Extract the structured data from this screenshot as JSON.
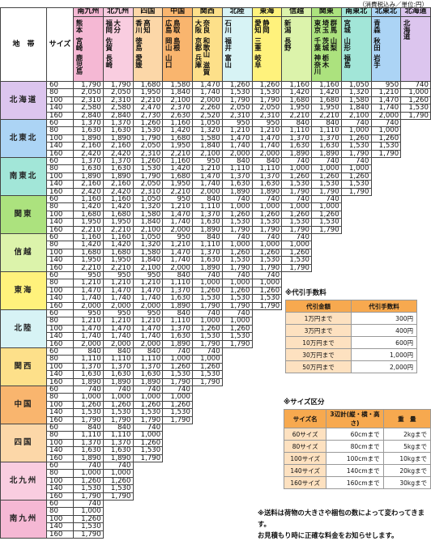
{
  "note": "（消費税込み／単位:円）",
  "header": {
    "zone": "地　帯",
    "size": "サイズ"
  },
  "destinations": [
    {
      "name": "南九州",
      "color": "#f5b8d4",
      "prefectures": [
        "熊本",
        "宮崎",
        "鹿児島"
      ]
    },
    {
      "name": "北九州",
      "color": "#f9cde0",
      "prefectures": [
        "福岡",
        "佐賀",
        "長崎",
        "大分"
      ]
    },
    {
      "name": "四国",
      "color": "#fcd7a8",
      "prefectures": [
        "香川",
        "徳島",
        "愛媛",
        "高知"
      ]
    },
    {
      "name": "中国",
      "color": "#f9b56e",
      "prefectures": [
        "広島",
        "岡山",
        "山口",
        "鳥取",
        "島根"
      ]
    },
    {
      "name": "関西",
      "color": "#fde08a",
      "prefectures": [
        "大阪",
        "京都",
        "兵庫",
        "奈良",
        "和歌山",
        "滋賀"
      ]
    },
    {
      "name": "北陸",
      "color": "#d7f3f5",
      "prefectures": [
        "石川",
        "福井",
        "富山"
      ]
    },
    {
      "name": "東海",
      "color": "#fff27c",
      "prefectures": [
        "愛知",
        "三重",
        "岐阜",
        "静岡"
      ]
    },
    {
      "name": "信越",
      "color": "#dcf3ab",
      "prefectures": [
        "新潟",
        "長野"
      ]
    },
    {
      "name": "関東",
      "color": "#ace27e",
      "prefectures": [
        "東京",
        "千葉",
        "神奈川",
        "埼玉",
        "茨城",
        "栃木",
        "群馬",
        "山梨"
      ]
    },
    {
      "name": "南東北",
      "color": "#a2e6d8",
      "prefectures": [
        "宮城",
        "山形",
        "福島"
      ]
    },
    {
      "name": "北東北",
      "color": "#acd4f5",
      "prefectures": [
        "青森",
        "秋田",
        "岩手"
      ]
    },
    {
      "name": "北海道",
      "color": "#dcc5ee",
      "prefectures": [
        "北海道"
      ]
    }
  ],
  "origins": [
    {
      "name": "北海道",
      "color": "#dcc5ee",
      "rows": [
        {
          "size": "60",
          "prices": [
            "1,790",
            "1,790",
            "1,680",
            "1,580",
            "1,470",
            "1,260",
            "1,260",
            "1,160",
            "1,160",
            "1,050",
            "950",
            "740"
          ]
        },
        {
          "size": "80",
          "prices": [
            "2,050",
            "2,050",
            "1,950",
            "1,840",
            "1,740",
            "1,530",
            "1,530",
            "1,420",
            "1,420",
            "1,320",
            "1,210",
            "1,000"
          ]
        },
        {
          "size": "100",
          "prices": [
            "2,310",
            "2,310",
            "2,210",
            "2,100",
            "2,000",
            "1,790",
            "1,790",
            "1,680",
            "1,680",
            "1,580",
            "1,470",
            "1,260"
          ]
        },
        {
          "size": "140",
          "prices": [
            "2,580",
            "2,580",
            "2,470",
            "2,370",
            "2,260",
            "2,050",
            "2,050",
            "1,950",
            "1,950",
            "1,840",
            "1,740",
            "1,530"
          ]
        },
        {
          "size": "160",
          "prices": [
            "2,840",
            "2,840",
            "2,730",
            "2,630",
            "2,520",
            "2,310",
            "2,310",
            "2,210",
            "2,210",
            "2,100",
            "2,000",
            "1,790"
          ]
        }
      ]
    },
    {
      "name": "北東北",
      "color": "#acd4f5",
      "rows": [
        {
          "size": "60",
          "prices": [
            "1,370",
            "1,370",
            "1,260",
            "1,160",
            "1,050",
            "950",
            "950",
            "840",
            "840",
            "740",
            "740"
          ]
        },
        {
          "size": "80",
          "prices": [
            "1,630",
            "1,630",
            "1,530",
            "1,420",
            "1,320",
            "1,210",
            "1,210",
            "1,110",
            "1,110",
            "1,000",
            "1,000"
          ]
        },
        {
          "size": "100",
          "prices": [
            "1,890",
            "1,890",
            "1,790",
            "1,680",
            "1,580",
            "1,470",
            "1,470",
            "1,370",
            "1,370",
            "1,260",
            "1,260"
          ]
        },
        {
          "size": "140",
          "prices": [
            "2,160",
            "2,160",
            "2,050",
            "1,950",
            "1,840",
            "1,740",
            "1,740",
            "1,630",
            "1,630",
            "1,530",
            "1,530"
          ]
        },
        {
          "size": "160",
          "prices": [
            "2,420",
            "2,420",
            "2,310",
            "2,210",
            "2,100",
            "2,000",
            "2,000",
            "1,890",
            "1,890",
            "1,790",
            "1,790"
          ]
        }
      ]
    },
    {
      "name": "南東北",
      "color": "#a2e6d8",
      "rows": [
        {
          "size": "60",
          "prices": [
            "1,370",
            "1,370",
            "1,260",
            "1,160",
            "950",
            "840",
            "840",
            "740",
            "740",
            "740"
          ]
        },
        {
          "size": "80",
          "prices": [
            "1,630",
            "1,630",
            "1,530",
            "1,420",
            "1,210",
            "1,110",
            "1,110",
            "1,000",
            "1,000",
            "1,000"
          ]
        },
        {
          "size": "100",
          "prices": [
            "1,890",
            "1,890",
            "1,790",
            "1,680",
            "1,470",
            "1,370",
            "1,370",
            "1,260",
            "1,260",
            "1,260"
          ]
        },
        {
          "size": "140",
          "prices": [
            "2,160",
            "2,160",
            "2,050",
            "1,950",
            "1,740",
            "1,630",
            "1,630",
            "1,530",
            "1,530",
            "1,530"
          ]
        },
        {
          "size": "160",
          "prices": [
            "2,420",
            "2,420",
            "2,310",
            "2,210",
            "2,000",
            "1,890",
            "1,890",
            "1,790",
            "1,790",
            "1,790"
          ]
        }
      ]
    },
    {
      "name": "関東",
      "color": "#ace27e",
      "rows": [
        {
          "size": "60",
          "prices": [
            "1,160",
            "1,160",
            "1,050",
            "950",
            "840",
            "740",
            "740",
            "740",
            "740"
          ]
        },
        {
          "size": "80",
          "prices": [
            "1,420",
            "1,420",
            "1,320",
            "1,210",
            "1,110",
            "1,000",
            "1,000",
            "1,000",
            "1,000"
          ]
        },
        {
          "size": "100",
          "prices": [
            "1,680",
            "1,680",
            "1,580",
            "1,470",
            "1,370",
            "1,260",
            "1,260",
            "1,260",
            "1,260"
          ]
        },
        {
          "size": "140",
          "prices": [
            "1,950",
            "1,950",
            "1,840",
            "1,740",
            "1,630",
            "1,530",
            "1,530",
            "1,530",
            "1,530"
          ]
        },
        {
          "size": "160",
          "prices": [
            "2,210",
            "2,210",
            "2,100",
            "2,000",
            "1,890",
            "1,790",
            "1,790",
            "1,790",
            "1,790"
          ]
        }
      ]
    },
    {
      "name": "信越",
      "color": "#dcf3ab",
      "rows": [
        {
          "size": "60",
          "prices": [
            "1,160",
            "1,160",
            "1,050",
            "950",
            "840",
            "740",
            "740",
            "740"
          ]
        },
        {
          "size": "80",
          "prices": [
            "1,420",
            "1,420",
            "1,320",
            "1,210",
            "1,110",
            "1,000",
            "1,000",
            "1,000"
          ]
        },
        {
          "size": "100",
          "prices": [
            "1,680",
            "1,680",
            "1,580",
            "1,470",
            "1,370",
            "1,260",
            "1,260",
            "1,260"
          ]
        },
        {
          "size": "140",
          "prices": [
            "1,950",
            "1,950",
            "1,840",
            "1,740",
            "1,630",
            "1,530",
            "1,530",
            "1,530"
          ]
        },
        {
          "size": "160",
          "prices": [
            "2,210",
            "2,210",
            "2,100",
            "2,000",
            "1,890",
            "1,790",
            "1,790",
            "1,790"
          ]
        }
      ]
    },
    {
      "name": "東海",
      "color": "#fff27c",
      "rows": [
        {
          "size": "60",
          "prices": [
            "950",
            "950",
            "950",
            "840",
            "740",
            "740",
            "740"
          ]
        },
        {
          "size": "80",
          "prices": [
            "1,210",
            "1,210",
            "1,210",
            "1,110",
            "1,000",
            "1,000",
            "1,000"
          ]
        },
        {
          "size": "100",
          "prices": [
            "1,470",
            "1,470",
            "1,470",
            "1,370",
            "1,260",
            "1,260",
            "1,260"
          ]
        },
        {
          "size": "140",
          "prices": [
            "1,740",
            "1,740",
            "1,740",
            "1,630",
            "1,530",
            "1,530",
            "1,530"
          ]
        },
        {
          "size": "160",
          "prices": [
            "2,000",
            "2,000",
            "2,000",
            "1,890",
            "1,790",
            "1,790",
            "1,790"
          ]
        }
      ]
    },
    {
      "name": "北陸",
      "color": "#d7f3f5",
      "rows": [
        {
          "size": "60",
          "prices": [
            "950",
            "950",
            "950",
            "840",
            "740",
            "740"
          ]
        },
        {
          "size": "80",
          "prices": [
            "1,210",
            "1,210",
            "1,210",
            "1,110",
            "1,000",
            "1,000"
          ]
        },
        {
          "size": "100",
          "prices": [
            "1,470",
            "1,470",
            "1,470",
            "1,370",
            "1,260",
            "1,260"
          ]
        },
        {
          "size": "140",
          "prices": [
            "1,740",
            "1,740",
            "1,740",
            "1,630",
            "1,530",
            "1,530"
          ]
        },
        {
          "size": "160",
          "prices": [
            "2,000",
            "2,000",
            "2,000",
            "1,890",
            "1,790",
            "1,790"
          ]
        }
      ]
    },
    {
      "name": "関西",
      "color": "#fde08a",
      "rows": [
        {
          "size": "60",
          "prices": [
            "840",
            "840",
            "840",
            "740",
            "740"
          ]
        },
        {
          "size": "80",
          "prices": [
            "1,110",
            "1,110",
            "1,110",
            "1,000",
            "1,000"
          ]
        },
        {
          "size": "100",
          "prices": [
            "1,370",
            "1,370",
            "1,370",
            "1,260",
            "1,260"
          ]
        },
        {
          "size": "140",
          "prices": [
            "1,630",
            "1,630",
            "1,630",
            "1,530",
            "1,530"
          ]
        },
        {
          "size": "160",
          "prices": [
            "1,890",
            "1,890",
            "1,890",
            "1,790",
            "1,790"
          ]
        }
      ]
    },
    {
      "name": "中国",
      "color": "#f9b56e",
      "rows": [
        {
          "size": "60",
          "prices": [
            "740",
            "740",
            "740",
            "740"
          ]
        },
        {
          "size": "80",
          "prices": [
            "1,000",
            "1,000",
            "1,000",
            "1,000"
          ]
        },
        {
          "size": "100",
          "prices": [
            "1,260",
            "1,260",
            "1,260",
            "1,260"
          ]
        },
        {
          "size": "140",
          "prices": [
            "1,530",
            "1,530",
            "1,530",
            "1,530"
          ]
        },
        {
          "size": "160",
          "prices": [
            "1,790",
            "1,790",
            "1,790",
            "1,790"
          ]
        }
      ]
    },
    {
      "name": "四国",
      "color": "#fcd7a8",
      "rows": [
        {
          "size": "60",
          "prices": [
            "840",
            "840",
            "740"
          ]
        },
        {
          "size": "80",
          "prices": [
            "1,110",
            "1,110",
            "1,000"
          ]
        },
        {
          "size": "100",
          "prices": [
            "1,370",
            "1,370",
            "1,260"
          ]
        },
        {
          "size": "140",
          "prices": [
            "1,630",
            "1,630",
            "1,530"
          ]
        },
        {
          "size": "160",
          "prices": [
            "1,890",
            "1,890",
            "1,790"
          ]
        }
      ]
    },
    {
      "name": "北九州",
      "color": "#f9cde0",
      "rows": [
        {
          "size": "60",
          "prices": [
            "740",
            "740"
          ]
        },
        {
          "size": "80",
          "prices": [
            "1,000",
            "1,000"
          ]
        },
        {
          "size": "100",
          "prices": [
            "1,260",
            "1,260"
          ]
        },
        {
          "size": "140",
          "prices": [
            "1,530",
            "1,530"
          ]
        },
        {
          "size": "160",
          "prices": [
            "1,790",
            "1,790"
          ]
        }
      ]
    },
    {
      "name": "南九州",
      "color": "#f5b8d4",
      "rows": [
        {
          "size": "60",
          "prices": [
            "740"
          ]
        },
        {
          "size": "80",
          "prices": [
            "1,000"
          ]
        },
        {
          "size": "100",
          "prices": [
            "1,260"
          ]
        },
        {
          "size": "140",
          "prices": [
            "1,530"
          ]
        },
        {
          "size": "160",
          "prices": [
            "1,790"
          ]
        }
      ]
    }
  ],
  "cod": {
    "title": "※代引手数料",
    "headers": [
      "代引金額",
      "代引手数料"
    ],
    "rows": [
      [
        "1万円まで",
        "300円"
      ],
      [
        "3万円まで",
        "400円"
      ],
      [
        "10万円まで",
        "600円"
      ],
      [
        "30万円まで",
        "1,000円"
      ],
      [
        "50万円まで",
        "2,000円"
      ]
    ]
  },
  "sizes": {
    "title": "※サイズ区分",
    "headers": [
      "サイズ名",
      "3辺計(縦・横・高さ)",
      "重　量"
    ],
    "rows": [
      [
        "60サイズ",
        "60cmまで",
        "2kgまで"
      ],
      [
        "80サイズ",
        "80cmまで",
        "5kgまで"
      ],
      [
        "100サイズ",
        "100cmまで",
        "10kgまで"
      ],
      [
        "140サイズ",
        "140cmまで",
        "20kgまで"
      ],
      [
        "160サイズ",
        "160cmまで",
        "30kgまで"
      ]
    ]
  },
  "footer": [
    "※送料は荷物の大きさや梱包の数によって変わってきます。",
    "お見積もり時に正確な料金をお知らせします。"
  ]
}
